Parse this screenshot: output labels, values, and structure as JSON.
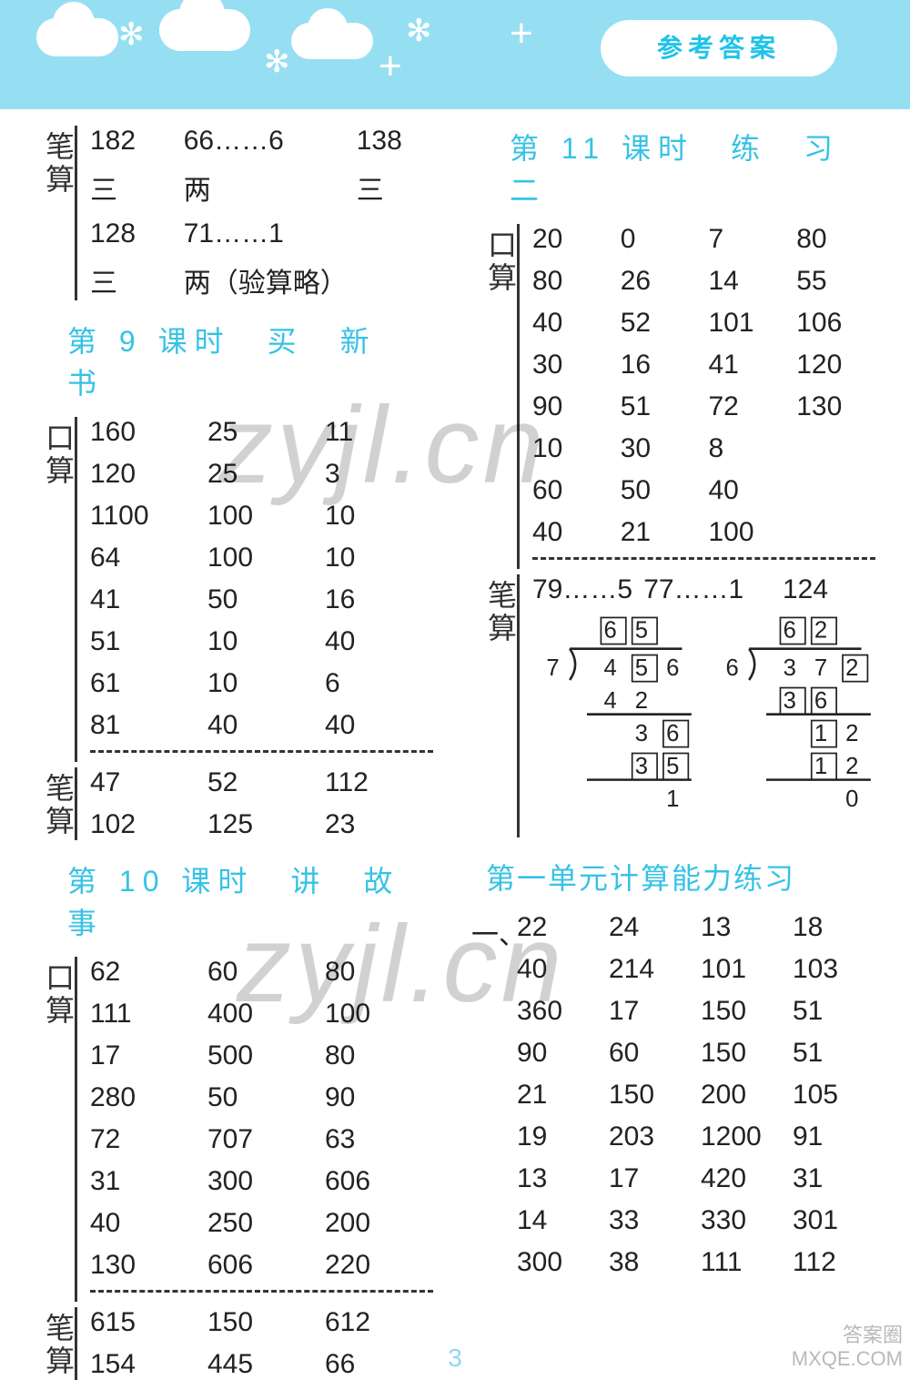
{
  "banner": {
    "badge": "参考答案"
  },
  "page_number": "3",
  "left": {
    "top_bisu": {
      "label": "笔算",
      "rows": [
        [
          "182",
          "66……6",
          "138"
        ],
        [
          "三",
          "两",
          "三"
        ],
        [
          "128",
          "71……1",
          ""
        ],
        [
          "三",
          "两（验算略）",
          ""
        ]
      ]
    },
    "section9_title": "第 9 课时　买　新　书",
    "section9_kousuan": {
      "label": "口算",
      "rows": [
        [
          "160",
          "25",
          "11"
        ],
        [
          "120",
          "25",
          "3"
        ],
        [
          "1100",
          "100",
          "10"
        ],
        [
          "64",
          "100",
          "10"
        ],
        [
          "41",
          "50",
          "16"
        ],
        [
          "51",
          "10",
          "40"
        ],
        [
          "61",
          "10",
          "6"
        ],
        [
          "81",
          "40",
          "40"
        ]
      ]
    },
    "section9_bisu": {
      "label": "笔算",
      "rows": [
        [
          "47",
          "52",
          "112"
        ],
        [
          "102",
          "125",
          "23"
        ]
      ]
    },
    "section10_title": "第 10 课时　讲　故　事",
    "section10_kousuan": {
      "label": "口算",
      "rows": [
        [
          "62",
          "60",
          "80"
        ],
        [
          "111",
          "400",
          "100"
        ],
        [
          "17",
          "500",
          "80"
        ],
        [
          "280",
          "50",
          "90"
        ],
        [
          "72",
          "707",
          "63"
        ],
        [
          "31",
          "300",
          "606"
        ],
        [
          "40",
          "250",
          "200"
        ],
        [
          "130",
          "606",
          "220"
        ]
      ]
    },
    "section10_bisu": {
      "label": "笔算",
      "rows": [
        [
          "615",
          "150",
          "612"
        ],
        [
          "154",
          "445",
          "66"
        ]
      ]
    }
  },
  "right": {
    "section11_title": "第 11 课时　练　习　二",
    "section11_kousuan": {
      "label": "口算",
      "rows": [
        [
          "20",
          "0",
          "7",
          "80"
        ],
        [
          "80",
          "26",
          "14",
          "55"
        ],
        [
          "40",
          "52",
          "101",
          "106"
        ],
        [
          "30",
          "16",
          "41",
          "120"
        ],
        [
          "90",
          "51",
          "72",
          "130"
        ],
        [
          "10",
          "30",
          "8",
          ""
        ],
        [
          "60",
          "50",
          "40",
          ""
        ],
        [
          "40",
          "21",
          "100",
          ""
        ]
      ]
    },
    "section11_bisu": {
      "label": "笔算",
      "line": [
        "79……5",
        "77……1",
        "124"
      ],
      "div_left": {
        "divisor": "7",
        "dividend": [
          "4",
          "5",
          "6"
        ],
        "quotient": [
          "6",
          "5"
        ],
        "steps": [
          [
            "4",
            "2",
            ""
          ],
          [
            "",
            "3",
            "6"
          ],
          [
            "",
            "3",
            "5"
          ],
          [
            "",
            "",
            "1"
          ]
        ],
        "boxes": {
          "quotient": [
            true,
            true
          ],
          "dividend": [
            false,
            true,
            false
          ],
          "steps": [
            [
              false,
              false,
              false
            ],
            [
              false,
              false,
              true
            ],
            [
              false,
              true,
              true
            ],
            [
              false,
              false,
              false
            ]
          ]
        }
      },
      "div_right": {
        "divisor": "6",
        "dividend": [
          "3",
          "7",
          "2"
        ],
        "quotient": [
          "6",
          "2"
        ],
        "steps": [
          [
            "3",
            "6",
            ""
          ],
          [
            "",
            "1",
            "2"
          ],
          [
            "",
            "1",
            "2"
          ],
          [
            "",
            "",
            "0"
          ]
        ],
        "boxes": {
          "quotient": [
            true,
            true
          ],
          "dividend": [
            false,
            false,
            true
          ],
          "steps": [
            [
              true,
              true,
              false
            ],
            [
              false,
              true,
              false
            ],
            [
              false,
              true,
              false
            ],
            [
              false,
              false,
              false
            ]
          ]
        }
      }
    },
    "unit1_title": "第一单元计算能力练习",
    "unit1_lead": "一、",
    "unit1_rows": [
      [
        "22",
        "24",
        "13",
        "18"
      ],
      [
        "40",
        "214",
        "101",
        "103"
      ],
      [
        "360",
        "17",
        "150",
        "51"
      ],
      [
        "90",
        "60",
        "150",
        "51"
      ],
      [
        "21",
        "150",
        "200",
        "105"
      ],
      [
        "19",
        "203",
        "1200",
        "91"
      ],
      [
        "13",
        "17",
        "420",
        "31"
      ],
      [
        "14",
        "33",
        "330",
        "301"
      ],
      [
        "300",
        "38",
        "111",
        "112"
      ]
    ]
  },
  "watermarks": {
    "w1": "zyjl.cn",
    "w2": "zyjl.cn",
    "corner1": "答案圈",
    "corner2": "MXQE.COM"
  },
  "colors": {
    "banner_bg": "#96dff2",
    "heading": "#36c2e6",
    "text": "#222222",
    "pagenum": "#8fd8ef"
  }
}
